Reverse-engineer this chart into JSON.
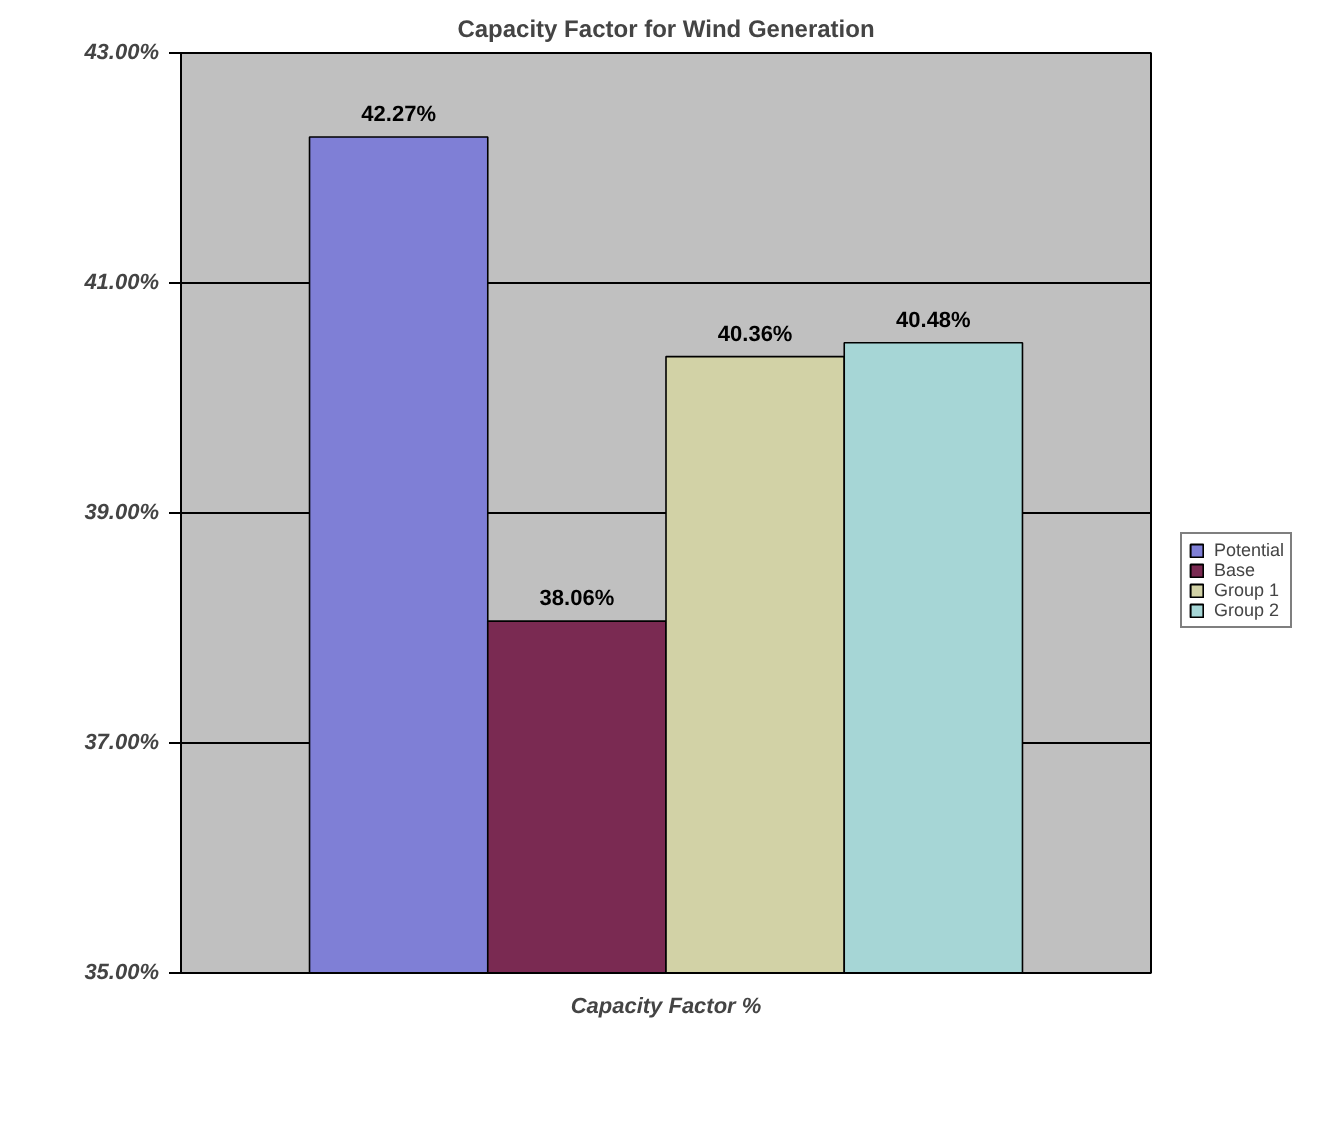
{
  "chart_data": {
    "type": "bar",
    "title": "Capacity Factor for Wind Generation",
    "xlabel": "Capacity Factor %",
    "categories": [
      null
    ],
    "series": [
      {
        "name": "Potential",
        "color": "#7f7fd6",
        "values": [
          42.27
        ],
        "value_labels": [
          "42.27%"
        ]
      },
      {
        "name": "Base",
        "color": "#7a2a52",
        "values": [
          38.06
        ],
        "value_labels": [
          "38.06%"
        ]
      },
      {
        "name": "Group 1",
        "color": "#d2d2a6",
        "values": [
          40.36
        ],
        "value_labels": [
          "40.36%"
        ]
      },
      {
        "name": "Group 2",
        "color": "#a6d6d6",
        "values": [
          40.48
        ],
        "value_labels": [
          "40.48%"
        ]
      }
    ],
    "ylim": [
      35,
      43
    ],
    "yticks": [
      {
        "value": 35,
        "label": "35.00%"
      },
      {
        "value": 37,
        "label": "37.00%"
      },
      {
        "value": 39,
        "label": "39.00%"
      },
      {
        "value": 41,
        "label": "41.00%"
      },
      {
        "value": 43,
        "label": "43.00%"
      }
    ],
    "grid": "y",
    "legend": "right"
  }
}
